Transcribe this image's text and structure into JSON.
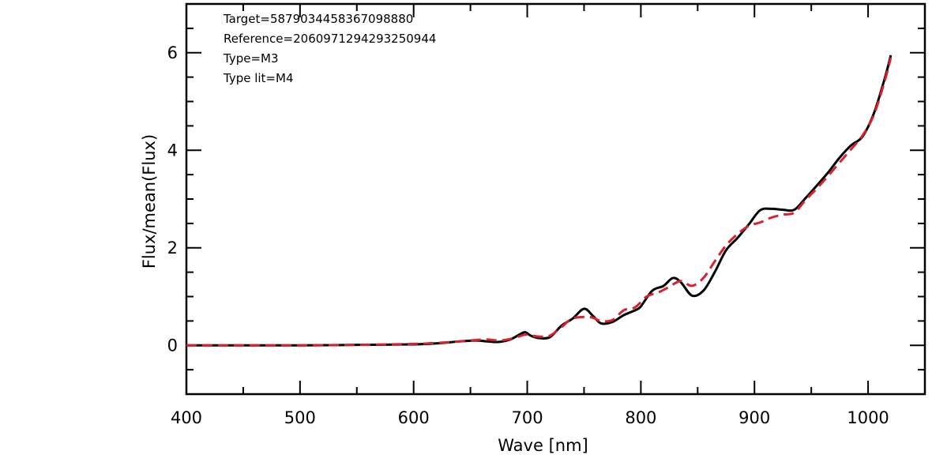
{
  "chart_data": {
    "type": "line",
    "title": "",
    "xlabel": "Wave [nm]",
    "ylabel": "Flux/mean(Flux)",
    "xlim": [
      400,
      1050
    ],
    "ylim": [
      -1,
      7
    ],
    "xticks": [
      400,
      500,
      600,
      700,
      800,
      900,
      1000
    ],
    "yticks": [
      0,
      2,
      4,
      6
    ],
    "xtick_labels": [
      "400",
      "500",
      "600",
      "700",
      "800",
      "900",
      "1000"
    ],
    "ytick_labels": [
      "0",
      "2",
      "4",
      "6"
    ],
    "grid": false,
    "legend": null,
    "annotations": [
      "Target=5879034458367098880",
      "Reference=2060971294293250944",
      "Type=M3",
      "Type lit=M4"
    ],
    "series": [
      {
        "style": "solid",
        "color": "#000000",
        "x": [
          400,
          500,
          550,
          600,
          620,
          640,
          655,
          665,
          675,
          685,
          693,
          698,
          703,
          710,
          720,
          730,
          740,
          750,
          758,
          765,
          775,
          785,
          795,
          800,
          810,
          820,
          828,
          835,
          845,
          855,
          865,
          875,
          885,
          895,
          905,
          915,
          925,
          935,
          945,
          955,
          965,
          975,
          985,
          995,
          1005,
          1015,
          1020
        ],
        "y": [
          0.0,
          0.0,
          0.01,
          0.02,
          0.04,
          0.08,
          0.1,
          0.08,
          0.07,
          0.12,
          0.22,
          0.27,
          0.2,
          0.15,
          0.17,
          0.4,
          0.55,
          0.75,
          0.6,
          0.45,
          0.48,
          0.62,
          0.72,
          0.8,
          1.12,
          1.22,
          1.38,
          1.3,
          1.02,
          1.12,
          1.5,
          1.95,
          2.2,
          2.48,
          2.77,
          2.8,
          2.78,
          2.78,
          3.02,
          3.28,
          3.55,
          3.85,
          4.1,
          4.28,
          4.75,
          5.5,
          5.95
        ]
      },
      {
        "style": "dashed",
        "color": "#d6232f",
        "x": [
          400,
          500,
          550,
          600,
          620,
          640,
          655,
          665,
          675,
          685,
          695,
          700,
          710,
          720,
          730,
          740,
          755,
          765,
          775,
          785,
          795,
          805,
          815,
          825,
          835,
          845,
          855,
          865,
          875,
          885,
          895,
          905,
          915,
          925,
          935,
          945,
          955,
          965,
          975,
          985,
          995,
          1005,
          1015,
          1020
        ],
        "y": [
          0.0,
          0.0,
          0.01,
          0.03,
          0.05,
          0.08,
          0.11,
          0.12,
          0.1,
          0.13,
          0.2,
          0.22,
          0.18,
          0.2,
          0.37,
          0.55,
          0.58,
          0.5,
          0.52,
          0.72,
          0.78,
          1.0,
          1.08,
          1.2,
          1.32,
          1.22,
          1.38,
          1.72,
          2.05,
          2.28,
          2.45,
          2.52,
          2.62,
          2.68,
          2.72,
          2.98,
          3.22,
          3.48,
          3.75,
          4.02,
          4.3,
          4.72,
          5.45,
          5.9
        ]
      }
    ]
  }
}
